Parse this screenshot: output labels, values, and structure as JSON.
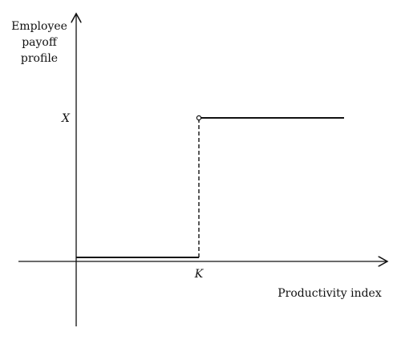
{
  "diagram": {
    "y_axis_label_lines": [
      "Employee",
      "payoff",
      "profile"
    ],
    "x_axis_label": "Productivity index",
    "threshold_label": "K",
    "payoff_label": "X",
    "segments": [
      {
        "name": "below-threshold",
        "value": "0 (baseline)"
      },
      {
        "name": "above-threshold",
        "value": "X"
      }
    ],
    "colors": {
      "line": "#111111",
      "background": "#ffffff"
    }
  }
}
